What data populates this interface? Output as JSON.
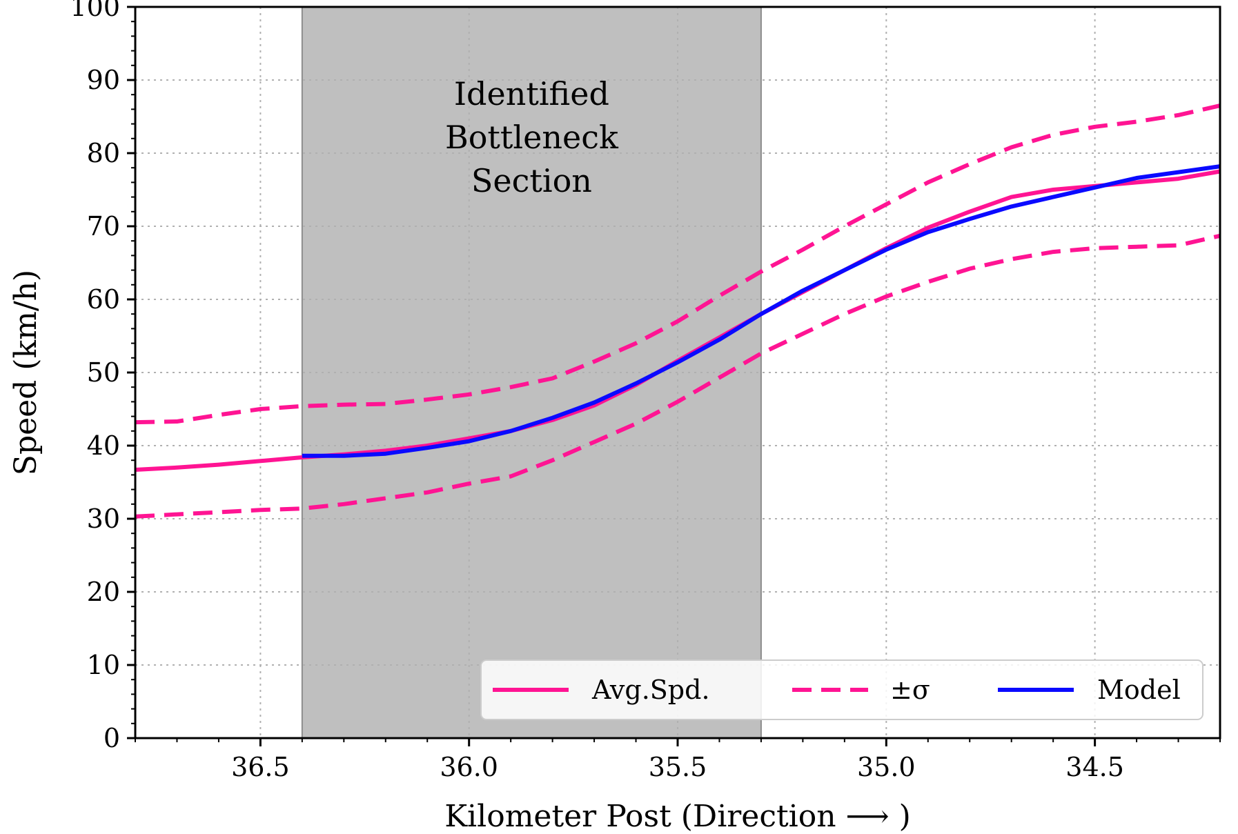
{
  "chart_data": {
    "type": "line",
    "xlabel": "Kilometer Post (Direction ⟶ )",
    "ylabel": "Speed (km/h)",
    "xlim": [
      36.8,
      34.2
    ],
    "ylim": [
      0,
      100
    ],
    "x_inverted": true,
    "grid": true,
    "x_ticks": [
      36.5,
      36.0,
      35.5,
      35.0,
      34.5
    ],
    "x_tick_labels": [
      "36.5",
      "36.0",
      "35.5",
      "35.0",
      "34.5"
    ],
    "y_ticks": [
      0,
      10,
      20,
      30,
      40,
      50,
      60,
      70,
      80,
      90,
      100
    ],
    "y_tick_labels": [
      "0",
      "10",
      "20",
      "30",
      "40",
      "50",
      "60",
      "70",
      "80",
      "90",
      "100"
    ],
    "shaded_region": {
      "x_from": 36.4,
      "x_to": 35.3,
      "color": "#bfbfbf",
      "label_lines": [
        "Identified",
        "Bottleneck",
        "Section"
      ]
    },
    "series": [
      {
        "name": "Avg.Spd.",
        "style": "solid",
        "color": "#ff1493",
        "x": [
          36.8,
          36.7,
          36.6,
          36.5,
          36.4,
          36.3,
          36.2,
          36.1,
          36.0,
          35.9,
          35.8,
          35.7,
          35.6,
          35.5,
          35.4,
          35.3,
          35.2,
          35.1,
          35.0,
          34.9,
          34.8,
          34.7,
          34.6,
          34.5,
          34.4,
          34.3,
          34.2
        ],
        "y": [
          36.7,
          37.0,
          37.4,
          37.9,
          38.4,
          38.8,
          39.3,
          40.0,
          41.0,
          42.0,
          43.5,
          45.5,
          48.3,
          51.6,
          54.8,
          58.0,
          61.0,
          64.0,
          67.0,
          69.8,
          72.0,
          74.0,
          75.0,
          75.5,
          76.0,
          76.5,
          77.5
        ]
      },
      {
        "name": "±σ",
        "style": "dashed",
        "color": "#ff1493",
        "x": [
          36.8,
          36.7,
          36.6,
          36.5,
          36.4,
          36.3,
          36.2,
          36.1,
          36.0,
          35.9,
          35.8,
          35.7,
          35.6,
          35.5,
          35.4,
          35.3,
          35.2,
          35.1,
          35.0,
          34.9,
          34.8,
          34.7,
          34.6,
          34.5,
          34.4,
          34.3,
          34.2
        ],
        "y": [
          43.2,
          43.3,
          44.2,
          45.0,
          45.4,
          45.6,
          45.7,
          46.3,
          47.0,
          48.0,
          49.2,
          51.5,
          54.0,
          57.0,
          60.5,
          63.8,
          66.8,
          70.0,
          73.0,
          76.0,
          78.5,
          80.8,
          82.5,
          83.6,
          84.3,
          85.2,
          86.5
        ]
      },
      {
        "name": "-σ",
        "style": "dashed",
        "color": "#ff1493",
        "legend": false,
        "x": [
          36.8,
          36.7,
          36.6,
          36.5,
          36.4,
          36.3,
          36.2,
          36.1,
          36.0,
          35.9,
          35.8,
          35.7,
          35.6,
          35.5,
          35.4,
          35.3,
          35.2,
          35.1,
          35.0,
          34.9,
          34.8,
          34.7,
          34.6,
          34.5,
          34.4,
          34.3,
          34.2
        ],
        "y": [
          30.3,
          30.6,
          30.9,
          31.2,
          31.4,
          32.0,
          32.8,
          33.6,
          34.8,
          35.8,
          38.0,
          40.5,
          43.0,
          46.0,
          49.3,
          52.6,
          55.3,
          58.0,
          60.4,
          62.4,
          64.2,
          65.5,
          66.5,
          67.0,
          67.2,
          67.4,
          68.7
        ]
      },
      {
        "name": "Model",
        "style": "solid",
        "color": "#0a0aff",
        "x": [
          36.4,
          36.3,
          36.2,
          36.1,
          36.0,
          35.9,
          35.8,
          35.7,
          35.6,
          35.5,
          35.4,
          35.3,
          35.2,
          35.1,
          35.0,
          34.9,
          34.8,
          34.7,
          34.6,
          34.5,
          34.4,
          34.3,
          34.2
        ],
        "y": [
          38.6,
          38.6,
          38.9,
          39.7,
          40.6,
          42.0,
          43.8,
          45.9,
          48.5,
          51.4,
          54.5,
          58.0,
          61.2,
          64.0,
          66.8,
          69.2,
          71.0,
          72.7,
          74.0,
          75.3,
          76.6,
          77.4,
          78.2
        ]
      }
    ],
    "legend": {
      "position": "lower-right",
      "entries": [
        {
          "label": "Avg.Spd.",
          "style": "solid",
          "color": "#ff1493"
        },
        {
          "label": "±σ",
          "style": "dashed",
          "color": "#ff1493"
        },
        {
          "label": "Model",
          "style": "solid",
          "color": "#0a0aff"
        }
      ]
    }
  }
}
